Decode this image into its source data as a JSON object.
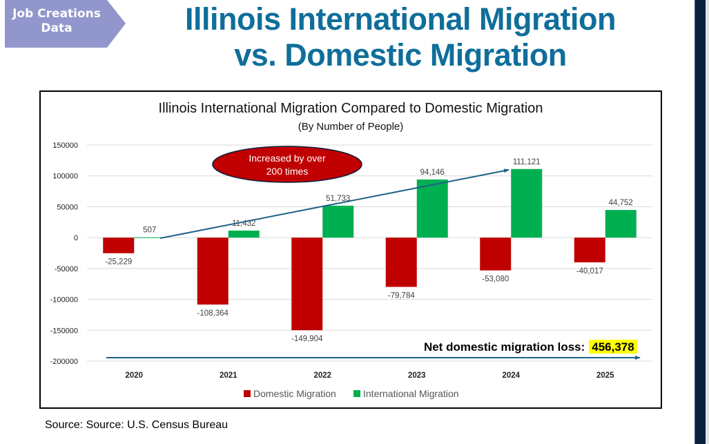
{
  "badge": {
    "label": "Job Creations Data",
    "line1": "Job Creations",
    "line2": "Data",
    "color": "#9197cc"
  },
  "main_title": {
    "line1": "Illinois International Migration",
    "line2": "vs. Domestic Migration",
    "color": "#0f6e9a"
  },
  "source": "Source: Source: U.S. Census Bureau",
  "annotations": {
    "callout_line1": "Increased by over",
    "callout_line2": "200 times",
    "net_label": "Net domestic migration loss: ",
    "net_value": "456,378",
    "callout_color": "#c00000",
    "arrow_color": "#1f6088",
    "highlight_color": "#ffff00"
  },
  "chart_data": {
    "type": "bar",
    "title": "Illinois International Migration Compared to Domestic Migration",
    "subtitle": "(By Number of People)",
    "xlabel": "",
    "ylabel": "",
    "categories": [
      "2020",
      "2021",
      "2022",
      "2023",
      "2024",
      "2025"
    ],
    "series": [
      {
        "name": "Domestic Migration",
        "color": "#c00000",
        "values": [
          -25229,
          -108364,
          -149904,
          -79784,
          -53080,
          -40017
        ],
        "labels": [
          "-25,229",
          "-108,364",
          "-149,904",
          "-79,784",
          "-53,080",
          "-40,017"
        ]
      },
      {
        "name": "International Migration",
        "color": "#00b050",
        "values": [
          507,
          11432,
          51733,
          94146,
          111121,
          44752
        ],
        "labels": [
          "507",
          "11,432",
          "51,733",
          "94,146",
          "111,121",
          "44,752"
        ]
      }
    ],
    "ylim": [
      -200000,
      150000
    ],
    "yticks": [
      150000,
      100000,
      50000,
      0,
      -50000,
      -100000,
      -150000,
      -200000
    ],
    "ytick_labels": [
      "150000",
      "100000",
      "50000",
      "0",
      "-50000",
      "-100000",
      "-150000",
      "-200000"
    ],
    "grid": true,
    "legend": "bottom"
  }
}
